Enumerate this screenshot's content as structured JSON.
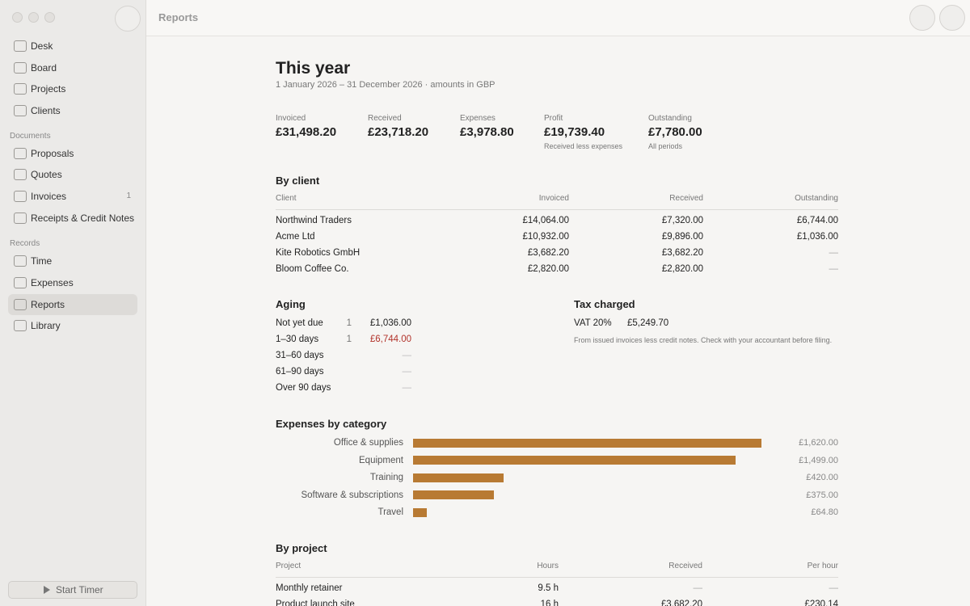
{
  "window": {
    "title": "Reports"
  },
  "sidebar": {
    "items": [
      "Desk",
      "Board",
      "Projects",
      "Clients"
    ],
    "documents": {
      "heading": "Documents",
      "items": [
        "Proposals",
        "Quotes",
        "Invoices",
        "Receipts & Credit Notes"
      ],
      "badge": "1"
    },
    "records": {
      "heading": "Records",
      "items": [
        "Time",
        "Expenses",
        "Reports",
        "Library"
      ]
    },
    "button": "Start Timer"
  },
  "report": {
    "title": "This year",
    "subtitle": "1 January 2026 – 31 December 2026 · amounts in GBP",
    "stats": [
      {
        "label": "Invoiced",
        "value": "£31,498.20"
      },
      {
        "label": "Received",
        "value": "£23,718.20"
      },
      {
        "label": "Expenses",
        "value": "£3,978.80"
      },
      {
        "label": "Profit",
        "value": "£19,739.40",
        "note": "Received less expenses"
      },
      {
        "label": "Outstanding",
        "value": "£7,780.00",
        "note": "All periods"
      }
    ],
    "by_client": {
      "heading": "By client",
      "columns": [
        "Client",
        "Invoiced",
        "Received",
        "Outstanding"
      ],
      "rows": [
        [
          "Northwind Traders",
          "£14,064.00",
          "£7,320.00",
          "£6,744.00"
        ],
        [
          "Acme Ltd",
          "£10,932.00",
          "£9,896.00",
          "£1,036.00"
        ],
        [
          "Kite Robotics GmbH",
          "£3,682.20",
          "£3,682.20",
          "—"
        ],
        [
          "Bloom Coffee Co.",
          "£2,820.00",
          "£2,820.00",
          "—"
        ]
      ]
    },
    "aging": {
      "heading": "Aging",
      "rows": [
        [
          "Not yet due",
          "1",
          "£1,036.00"
        ],
        [
          "1–30 days",
          "1",
          "£6,744.00"
        ],
        [
          "31–60 days",
          "—"
        ],
        [
          "61–90 days",
          "—"
        ],
        [
          "Over 90 days",
          "—"
        ]
      ]
    },
    "tax": {
      "heading": "Tax charged",
      "label": "VAT 20%",
      "value": "£5,249.70",
      "note": "From issued invoices less credit notes. Check with your accountant before filing."
    },
    "expenses": {
      "heading": "Expenses by category",
      "color": "#b87a33",
      "categories": [
        "Office & supplies",
        "Equipment",
        "Training",
        "Software & subscriptions",
        "Travel"
      ],
      "values": [
        1620,
        1499,
        420,
        375,
        64.8
      ],
      "value_labels": [
        "£1,620.00",
        "£1,499.00",
        "£420.00",
        "£375.00",
        "£64.80"
      ]
    },
    "by_project": {
      "heading": "By project",
      "columns": [
        "Project",
        "Hours",
        "Received",
        "Per hour"
      ],
      "rows": [
        [
          "Monthly retainer",
          "9.5 h",
          "—",
          "—"
        ],
        [
          "Product launch site",
          "16 h",
          "£3,682.20",
          "£230.14"
        ]
      ]
    }
  }
}
